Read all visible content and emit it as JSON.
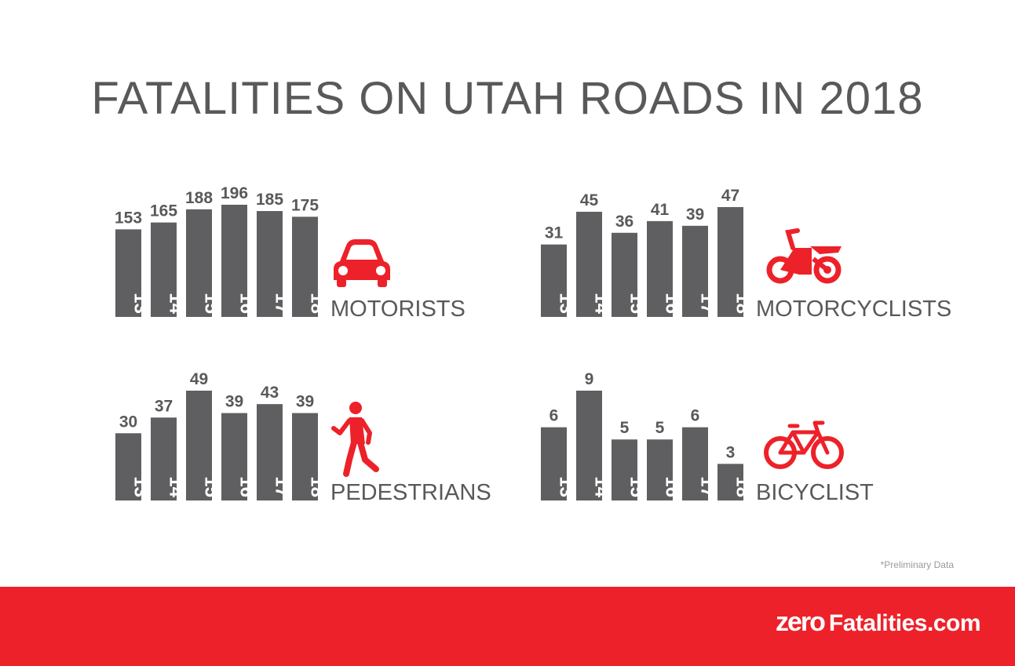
{
  "chart_data": {
    "title": "FATALITIES ON UTAH ROADS IN 2018",
    "type": "bar",
    "colors": {
      "bar": "#5f5f61",
      "icon": "#ed2129",
      "text": "#58595b",
      "footer": "#ed2129"
    },
    "panels": [
      {
        "name": "MOTORISTS",
        "icon": "car-icon",
        "categories": [
          "‘13",
          "‘14",
          "‘15",
          "‘16",
          "‘17",
          "‘18"
        ],
        "values": [
          153,
          165,
          188,
          196,
          185,
          175
        ]
      },
      {
        "name": "MOTORCYCLISTS",
        "icon": "motorcycle-icon",
        "categories": [
          "‘13",
          "‘14",
          "‘15",
          "‘16",
          "‘17",
          "‘18"
        ],
        "values": [
          31,
          45,
          36,
          41,
          39,
          47
        ]
      },
      {
        "name": "PEDESTRIANS",
        "icon": "pedestrian-icon",
        "categories": [
          "‘13",
          "‘14",
          "‘15",
          "‘16",
          "‘17",
          "‘18"
        ],
        "values": [
          30,
          37,
          49,
          39,
          43,
          39
        ]
      },
      {
        "name": "BICYCLIST",
        "icon": "bicycle-icon",
        "categories": [
          "‘13",
          "‘14",
          "‘15",
          "‘16",
          "‘17",
          "‘18"
        ],
        "values": [
          6,
          9,
          5,
          5,
          6,
          3
        ]
      }
    ]
  },
  "note": "*Preliminary Data",
  "footer": {
    "logo_zero": "zero",
    "logo_rest": "Fatalities",
    "logo_tld": ".com"
  }
}
